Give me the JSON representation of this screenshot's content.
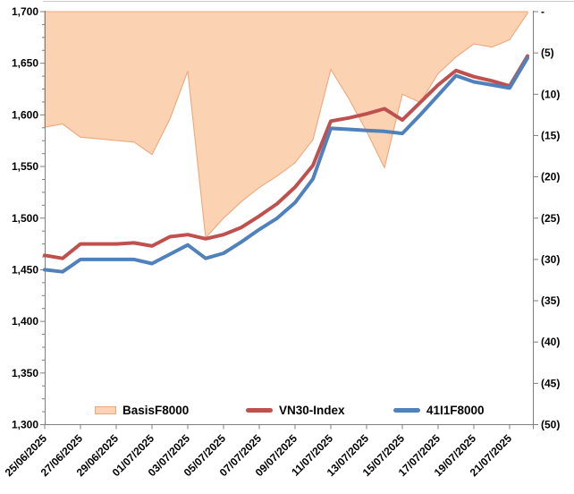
{
  "chart_data": {
    "type": "area",
    "subtype": "area-plus-two-lines combo, dual axis",
    "x": [
      "25/06/2025",
      "26/06/2025",
      "27/06/2025",
      "28/06/2025",
      "29/06/2025",
      "30/06/2025",
      "01/07/2025",
      "02/07/2025",
      "03/07/2025",
      "04/07/2025",
      "05/07/2025",
      "06/07/2025",
      "07/07/2025",
      "08/07/2025",
      "09/07/2025",
      "10/07/2025",
      "11/07/2025",
      "12/07/2025",
      "13/07/2025",
      "14/07/2025",
      "15/07/2025",
      "16/07/2025",
      "17/07/2025",
      "18/07/2025",
      "19/07/2025",
      "20/07/2025",
      "21/07/2025",
      "22/07/2025"
    ],
    "x_tick_labels": [
      "25/06/2025",
      "27/06/2025",
      "29/06/2025",
      "01/07/2025",
      "03/07/2025",
      "05/07/2025",
      "07/07/2025",
      "09/07/2025",
      "11/07/2025",
      "13/07/2025",
      "15/07/2025",
      "17/07/2025",
      "19/07/2025",
      "21/07/2025"
    ],
    "series": [
      {
        "name": "BasisF8000",
        "type": "area",
        "axis": "right",
        "fill_color": "#FBD3B3",
        "border_color": "#EFA77C",
        "values": [
          -14.0,
          -13.6,
          -15.2,
          -15.4,
          -15.6,
          -15.8,
          -17.3,
          -13.0,
          -7.2,
          -27.4,
          -25.0,
          -23.0,
          -21.3,
          -19.9,
          -18.3,
          -15.5,
          -7.0,
          -10.5,
          -14.5,
          -18.9,
          -10.0,
          -11.0,
          -7.5,
          -5.5,
          -3.9,
          -4.3,
          -3.4,
          -0.2
        ]
      },
      {
        "name": "VN30-Index",
        "type": "line",
        "axis": "left",
        "color": "#C0504D",
        "values": [
          1464,
          1461,
          1475,
          1475,
          1475,
          1476,
          1473,
          1482,
          1484,
          1480,
          1484,
          1491,
          1502,
          1514,
          1530,
          1551,
          1594,
          1597,
          1601,
          1606,
          1595,
          1612,
          1629,
          1643,
          1637,
          1633,
          1628,
          1657
        ]
      },
      {
        "name": "41I1F8000",
        "type": "line",
        "axis": "left",
        "color": "#4F81BD",
        "values": [
          1450,
          1448,
          1460,
          1460,
          1460,
          1460,
          1456,
          1465,
          1474,
          1461,
          1466,
          1477,
          1489,
          1500,
          1515,
          1538,
          1587,
          1586,
          1585,
          1584,
          1582,
          1600,
          1619,
          1638,
          1632,
          1629,
          1626,
          1655
        ]
      }
    ],
    "y_left": {
      "min": 1300,
      "max": 1700,
      "major_step": 50,
      "minor_step": 12.5,
      "tick_labels": [
        "1,700",
        "1,650",
        "1,600",
        "1,550",
        "1,500",
        "1,450",
        "1,400",
        "1,350",
        "1,300"
      ]
    },
    "y_right": {
      "min": -50,
      "max": 0,
      "major_step": 5,
      "tick_labels": [
        "-",
        "(5)",
        "(10)",
        "(15)",
        "(20)",
        "(25)",
        "(30)",
        "(35)",
        "(40)",
        "(45)",
        "(50)"
      ]
    },
    "grid": false,
    "legend_position": "bottom-inside",
    "title": ""
  },
  "legend": {
    "items": [
      {
        "label": "BasisF8000"
      },
      {
        "label": "VN30-Index"
      },
      {
        "label": "41I1F8000"
      }
    ]
  },
  "style": {
    "axis_color": "#7F7F7F",
    "tick_color": "#7F7F7F",
    "label_color": "#000000",
    "background": "#FFFFFF",
    "top_border_color": "#C9C9C9"
  }
}
